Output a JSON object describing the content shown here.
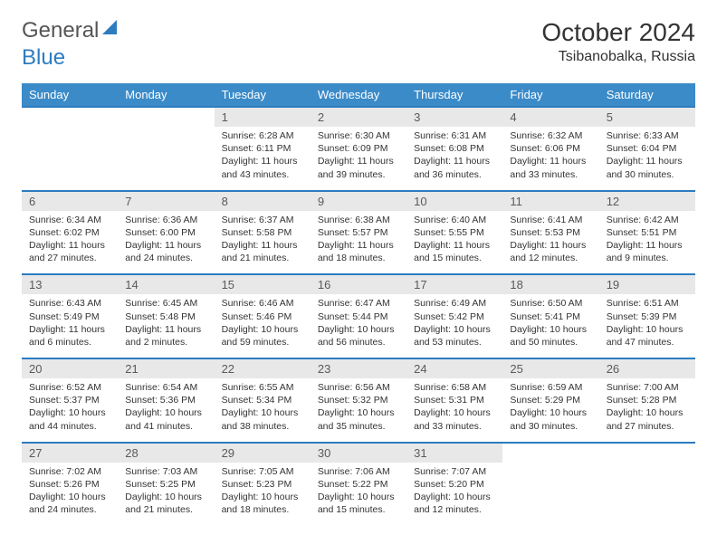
{
  "logo": {
    "part1": "General",
    "part2": "Blue"
  },
  "title": "October 2024",
  "location": "Tsibanobalka, Russia",
  "colors": {
    "header_bg": "#3b8bc9",
    "row_border": "#2d7cc0",
    "daynum_bg": "#e8e8e8",
    "text": "#333333"
  },
  "dow": [
    "Sunday",
    "Monday",
    "Tuesday",
    "Wednesday",
    "Thursday",
    "Friday",
    "Saturday"
  ],
  "weeks": [
    [
      null,
      null,
      {
        "n": "1",
        "sr": "6:28 AM",
        "ss": "6:11 PM",
        "dl": "11 hours and 43 minutes."
      },
      {
        "n": "2",
        "sr": "6:30 AM",
        "ss": "6:09 PM",
        "dl": "11 hours and 39 minutes."
      },
      {
        "n": "3",
        "sr": "6:31 AM",
        "ss": "6:08 PM",
        "dl": "11 hours and 36 minutes."
      },
      {
        "n": "4",
        "sr": "6:32 AM",
        "ss": "6:06 PM",
        "dl": "11 hours and 33 minutes."
      },
      {
        "n": "5",
        "sr": "6:33 AM",
        "ss": "6:04 PM",
        "dl": "11 hours and 30 minutes."
      }
    ],
    [
      {
        "n": "6",
        "sr": "6:34 AM",
        "ss": "6:02 PM",
        "dl": "11 hours and 27 minutes."
      },
      {
        "n": "7",
        "sr": "6:36 AM",
        "ss": "6:00 PM",
        "dl": "11 hours and 24 minutes."
      },
      {
        "n": "8",
        "sr": "6:37 AM",
        "ss": "5:58 PM",
        "dl": "11 hours and 21 minutes."
      },
      {
        "n": "9",
        "sr": "6:38 AM",
        "ss": "5:57 PM",
        "dl": "11 hours and 18 minutes."
      },
      {
        "n": "10",
        "sr": "6:40 AM",
        "ss": "5:55 PM",
        "dl": "11 hours and 15 minutes."
      },
      {
        "n": "11",
        "sr": "6:41 AM",
        "ss": "5:53 PM",
        "dl": "11 hours and 12 minutes."
      },
      {
        "n": "12",
        "sr": "6:42 AM",
        "ss": "5:51 PM",
        "dl": "11 hours and 9 minutes."
      }
    ],
    [
      {
        "n": "13",
        "sr": "6:43 AM",
        "ss": "5:49 PM",
        "dl": "11 hours and 6 minutes."
      },
      {
        "n": "14",
        "sr": "6:45 AM",
        "ss": "5:48 PM",
        "dl": "11 hours and 2 minutes."
      },
      {
        "n": "15",
        "sr": "6:46 AM",
        "ss": "5:46 PM",
        "dl": "10 hours and 59 minutes."
      },
      {
        "n": "16",
        "sr": "6:47 AM",
        "ss": "5:44 PM",
        "dl": "10 hours and 56 minutes."
      },
      {
        "n": "17",
        "sr": "6:49 AM",
        "ss": "5:42 PM",
        "dl": "10 hours and 53 minutes."
      },
      {
        "n": "18",
        "sr": "6:50 AM",
        "ss": "5:41 PM",
        "dl": "10 hours and 50 minutes."
      },
      {
        "n": "19",
        "sr": "6:51 AM",
        "ss": "5:39 PM",
        "dl": "10 hours and 47 minutes."
      }
    ],
    [
      {
        "n": "20",
        "sr": "6:52 AM",
        "ss": "5:37 PM",
        "dl": "10 hours and 44 minutes."
      },
      {
        "n": "21",
        "sr": "6:54 AM",
        "ss": "5:36 PM",
        "dl": "10 hours and 41 minutes."
      },
      {
        "n": "22",
        "sr": "6:55 AM",
        "ss": "5:34 PM",
        "dl": "10 hours and 38 minutes."
      },
      {
        "n": "23",
        "sr": "6:56 AM",
        "ss": "5:32 PM",
        "dl": "10 hours and 35 minutes."
      },
      {
        "n": "24",
        "sr": "6:58 AM",
        "ss": "5:31 PM",
        "dl": "10 hours and 33 minutes."
      },
      {
        "n": "25",
        "sr": "6:59 AM",
        "ss": "5:29 PM",
        "dl": "10 hours and 30 minutes."
      },
      {
        "n": "26",
        "sr": "7:00 AM",
        "ss": "5:28 PM",
        "dl": "10 hours and 27 minutes."
      }
    ],
    [
      {
        "n": "27",
        "sr": "7:02 AM",
        "ss": "5:26 PM",
        "dl": "10 hours and 24 minutes."
      },
      {
        "n": "28",
        "sr": "7:03 AM",
        "ss": "5:25 PM",
        "dl": "10 hours and 21 minutes."
      },
      {
        "n": "29",
        "sr": "7:05 AM",
        "ss": "5:23 PM",
        "dl": "10 hours and 18 minutes."
      },
      {
        "n": "30",
        "sr": "7:06 AM",
        "ss": "5:22 PM",
        "dl": "10 hours and 15 minutes."
      },
      {
        "n": "31",
        "sr": "7:07 AM",
        "ss": "5:20 PM",
        "dl": "10 hours and 12 minutes."
      },
      null,
      null
    ]
  ],
  "labels": {
    "sunrise": "Sunrise:",
    "sunset": "Sunset:",
    "daylight": "Daylight:"
  }
}
